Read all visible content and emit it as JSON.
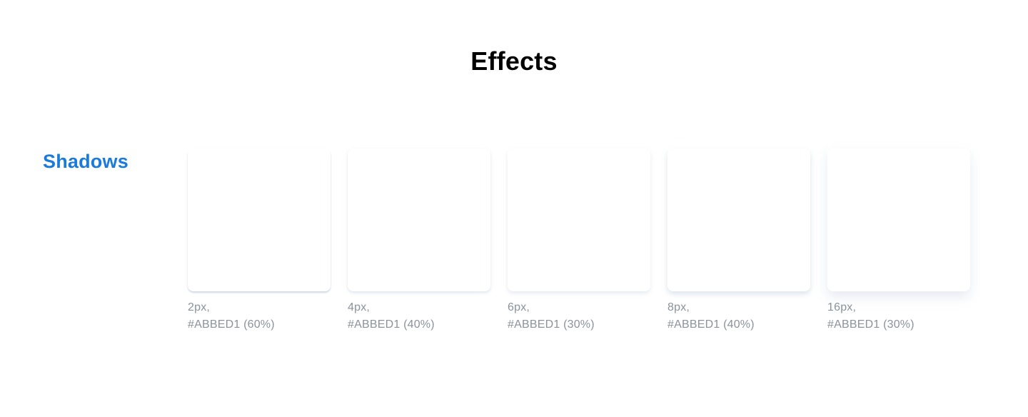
{
  "page": {
    "title": "Effects"
  },
  "shadows": {
    "section_title": "Shadows",
    "shadow_color": "#ABBED1",
    "items": [
      {
        "size": "2px,",
        "color_label": "#ABBED1 (60%)"
      },
      {
        "size": "4px,",
        "color_label": "#ABBED1 (40%)"
      },
      {
        "size": "6px,",
        "color_label": "#ABBED1 (30%)"
      },
      {
        "size": "8px,",
        "color_label": "#ABBED1 (40%)"
      },
      {
        "size": "16px,",
        "color_label": "#ABBED1 (30%)"
      }
    ]
  }
}
